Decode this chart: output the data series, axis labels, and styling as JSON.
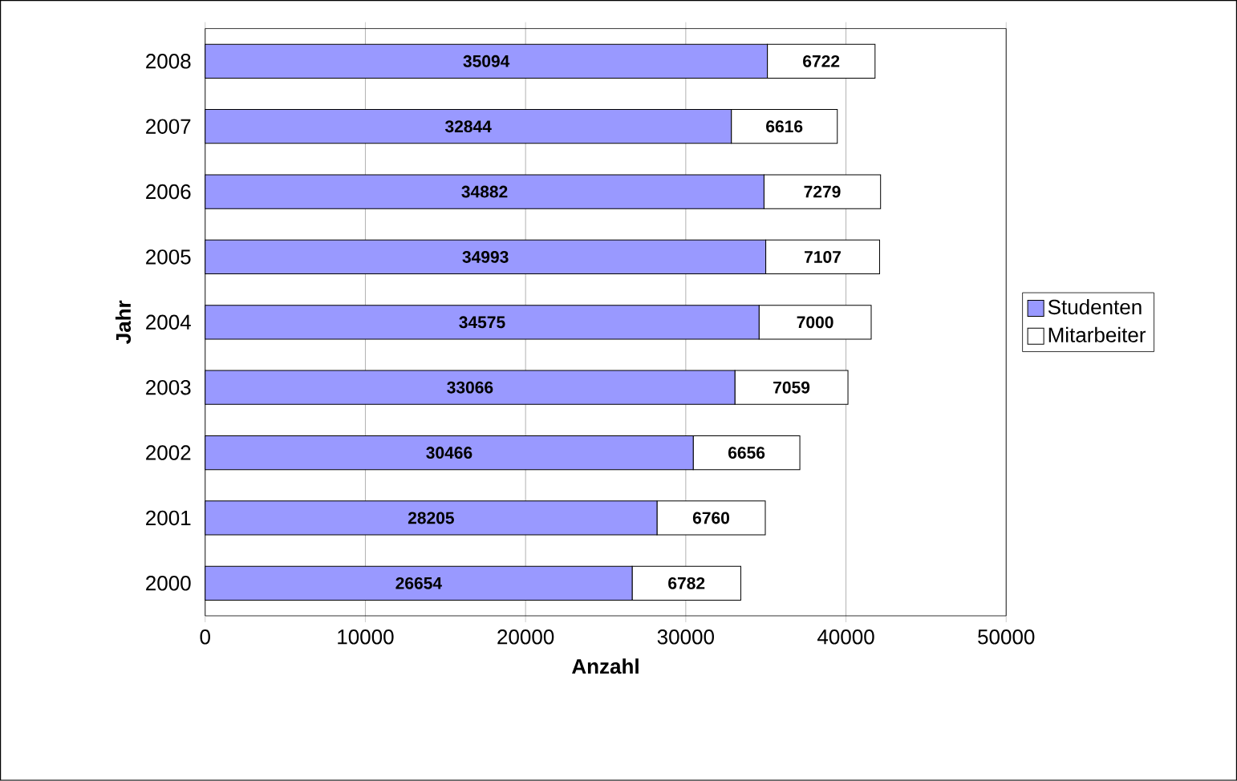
{
  "chart_data": {
    "type": "bar",
    "orientation": "horizontal",
    "stacked": true,
    "xlabel": "Anzahl",
    "ylabel": "Jahr",
    "categories": [
      "2008",
      "2007",
      "2006",
      "2005",
      "2004",
      "2003",
      "2002",
      "2001",
      "2000"
    ],
    "series": [
      {
        "name": "Studenten",
        "color": "#9999ff",
        "values": [
          35094,
          32844,
          34882,
          34993,
          34575,
          33066,
          30466,
          28205,
          26654
        ]
      },
      {
        "name": "Mitarbeiter",
        "color": "#ffffff",
        "values": [
          6722,
          6616,
          7279,
          7107,
          7000,
          7059,
          6656,
          6760,
          6782
        ]
      }
    ],
    "xlim": [
      0,
      50000
    ],
    "xticks": [
      0,
      10000,
      20000,
      30000,
      40000,
      50000
    ],
    "grid": "x",
    "legend": "right",
    "data_labels": true
  }
}
